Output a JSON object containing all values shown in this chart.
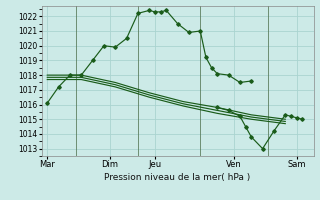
{
  "bg_color": "#cceae7",
  "grid_color": "#aad4d0",
  "line_color": "#1a5c1a",
  "xlabel": "Pression niveau de la mer( hPa )",
  "ylim": [
    1012.5,
    1022.7
  ],
  "yticks": [
    1013,
    1014,
    1015,
    1016,
    1017,
    1018,
    1019,
    1020,
    1021,
    1022
  ],
  "xlim": [
    0,
    24
  ],
  "xtick_labels": [
    "Mar",
    "Dim",
    "Jeu",
    "Ven",
    "Sam"
  ],
  "xtick_positions": [
    0.5,
    6,
    10,
    17,
    22.5
  ],
  "vlines": [
    3,
    8.5,
    14,
    20
  ],
  "series_main": {
    "x": [
      0.5,
      1.5,
      2.5,
      3.5,
      4.5,
      5.5,
      6.5,
      7.5,
      8.5,
      9.5,
      10.0,
      10.5,
      11.0,
      12.0,
      13.0,
      14.0,
      14.5,
      15.0,
      15.5,
      16.5,
      17.5,
      18.5
    ],
    "y": [
      1016.1,
      1017.2,
      1018.0,
      1018.0,
      1019.0,
      1020.0,
      1019.9,
      1020.5,
      1022.2,
      1022.4,
      1022.3,
      1022.3,
      1022.4,
      1021.5,
      1020.9,
      1021.0,
      1019.2,
      1018.5,
      1018.1,
      1018.0,
      1017.5,
      1017.6
    ]
  },
  "series_decline1": {
    "x": [
      0.5,
      3.5,
      6.5,
      9.5,
      12.5,
      15.5,
      18.5,
      21.5
    ],
    "y": [
      1018.0,
      1018.0,
      1017.5,
      1016.8,
      1016.2,
      1015.8,
      1015.3,
      1015.0
    ]
  },
  "series_decline2": {
    "x": [
      0.5,
      3.5,
      6.5,
      9.5,
      12.5,
      15.5,
      18.5,
      21.5
    ],
    "y": [
      1017.7,
      1017.7,
      1017.2,
      1016.5,
      1015.9,
      1015.4,
      1015.0,
      1014.7
    ]
  },
  "series_decline3": {
    "x": [
      0.5,
      3.5,
      6.5,
      9.5,
      12.5,
      15.5,
      18.5,
      21.5
    ],
    "y": [
      1017.85,
      1017.85,
      1017.35,
      1016.65,
      1016.05,
      1015.6,
      1015.15,
      1014.85
    ]
  },
  "series_drop": {
    "x": [
      15.5,
      16.5,
      17.5,
      18.0,
      18.5,
      19.5,
      20.5,
      21.5,
      22.0,
      22.5,
      23.0
    ],
    "y": [
      1015.8,
      1015.6,
      1015.2,
      1014.5,
      1013.8,
      1013.0,
      1014.2,
      1015.3,
      1015.2,
      1015.1,
      1015.0
    ]
  }
}
